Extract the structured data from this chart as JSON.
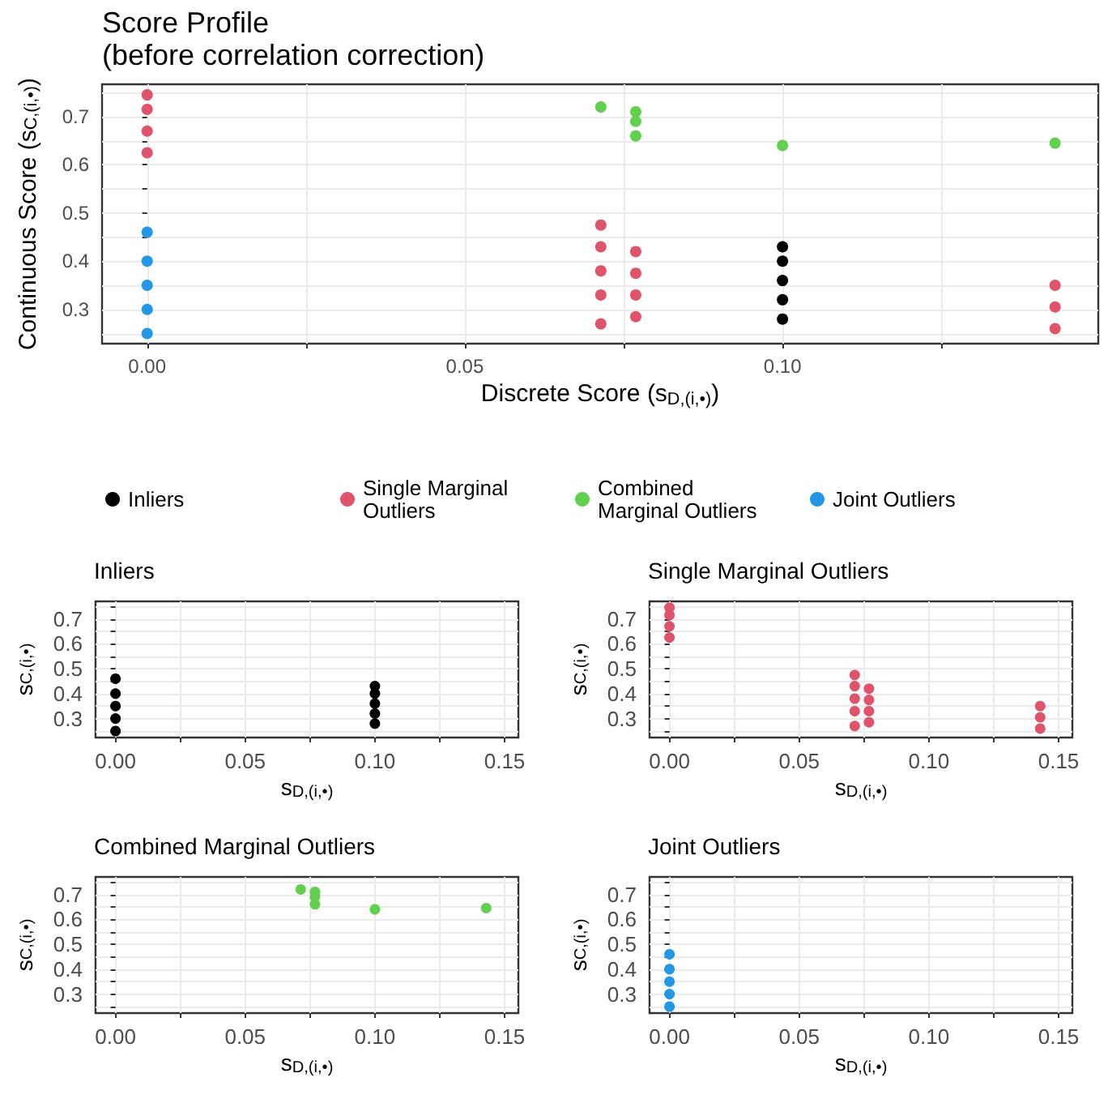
{
  "chart_data": [
    {
      "type": "scatter",
      "title": "Score Profile",
      "subtitle": "(before correlation correction)",
      "xlabel": "Discrete Score (s$_{D,(i,•)}$)",
      "ylabel": "Continuous Score (s$_{C,(i,•)}$)",
      "xlim": [
        -0.0071,
        0.1497
      ],
      "ylim": [
        0.229,
        0.767
      ],
      "xticks": [
        {
          "value": 0,
          "label": "0.00"
        },
        {
          "value": 0.025,
          "label": null
        },
        {
          "value": 0.05,
          "label": "0.05"
        },
        {
          "value": 0.075,
          "label": null
        },
        {
          "value": 0.1,
          "label": "0.10"
        },
        {
          "value": 0.125,
          "label": null
        }
      ],
      "yticks": [
        {
          "value": 0.25,
          "label": null
        },
        0.3,
        {
          "value": 0.35,
          "label": null
        },
        0.4,
        {
          "value": 0.45,
          "label": null
        },
        0.5,
        {
          "value": 0.55,
          "label": null
        },
        0.6,
        {
          "value": 0.65,
          "label": null
        },
        0.7,
        {
          "value": 0.75,
          "label": null
        }
      ],
      "grid": true,
      "legend": "bottom",
      "marker": "circle",
      "series": [
        {
          "name": "Inliers",
          "color": "#000000",
          "x": [
            0.1,
            0.1,
            0.1,
            0.1,
            0.1
          ],
          "values": [
            0.43,
            0.4,
            0.36,
            0.32,
            0.28
          ]
        },
        {
          "name": "Single Marginal Outliers",
          "color": "#df536b",
          "x": [
            0,
            0,
            0,
            0,
            0.0714,
            0.0714,
            0.0714,
            0.0714,
            0.0714,
            0.0769,
            0.0769,
            0.0769,
            0.0769,
            0.1429,
            0.1429,
            0.1429
          ],
          "values": [
            0.625,
            0.67,
            0.715,
            0.745,
            0.475,
            0.43,
            0.38,
            0.33,
            0.27,
            0.42,
            0.375,
            0.33,
            0.285,
            0.35,
            0.305,
            0.26
          ]
        },
        {
          "name": "Combined Marginal Outliers",
          "color": "#61d04f",
          "x": [
            0.0714,
            0.0769,
            0.0769,
            0.0769,
            0.1,
            0.1429
          ],
          "values": [
            0.72,
            0.71,
            0.69,
            0.66,
            0.64,
            0.645
          ]
        },
        {
          "name": "Joint Outliers",
          "color": "#2297e6",
          "x": [
            0,
            0,
            0,
            0,
            0
          ],
          "values": [
            0.25,
            0.3,
            0.35,
            0.4,
            0.46
          ]
        }
      ]
    },
    {
      "type": "scatter",
      "title": "Inliers",
      "xlabel": "s$_{D,(i,•)}$",
      "ylabel": "s$_{C,(i,•)}$",
      "xlim": [
        -0.0077,
        0.1553
      ],
      "ylim": [
        0.224,
        0.77
      ],
      "xticks": [
        {
          "value": 0,
          "label": "0.00"
        },
        {
          "value": 0.025,
          "label": null
        },
        {
          "value": 0.05,
          "label": "0.05"
        },
        {
          "value": 0.075,
          "label": null
        },
        {
          "value": 0.1,
          "label": "0.10"
        },
        {
          "value": 0.125,
          "label": null
        },
        {
          "value": 0.15,
          "label": "0.15"
        }
      ],
      "yticks": [
        {
          "value": 0.25,
          "label": null
        },
        0.3,
        {
          "value": 0.35,
          "label": null
        },
        0.4,
        {
          "value": 0.45,
          "label": null
        },
        0.5,
        {
          "value": 0.55,
          "label": null
        },
        0.6,
        {
          "value": 0.65,
          "label": null
        },
        0.7,
        {
          "value": 0.75,
          "label": null
        }
      ],
      "grid": true,
      "marker": "circle",
      "series": [
        {
          "color": "#000000",
          "x": [
            0,
            0,
            0,
            0,
            0,
            0.1,
            0.1,
            0.1,
            0.1,
            0.1
          ],
          "values": [
            0.25,
            0.3,
            0.35,
            0.4,
            0.46,
            0.43,
            0.4,
            0.36,
            0.32,
            0.28
          ]
        }
      ]
    },
    {
      "type": "scatter",
      "title": "Single Marginal Outliers",
      "xlabel": "s$_{D,(i,•)}$",
      "ylabel": "s$_{C,(i,•)}$",
      "xlim": [
        -0.0077,
        0.1553
      ],
      "ylim": [
        0.224,
        0.77
      ],
      "xticks": [
        {
          "value": 0,
          "label": "0.00"
        },
        {
          "value": 0.025,
          "label": null
        },
        {
          "value": 0.05,
          "label": "0.05"
        },
        {
          "value": 0.075,
          "label": null
        },
        {
          "value": 0.1,
          "label": "0.10"
        },
        {
          "value": 0.125,
          "label": null
        },
        {
          "value": 0.15,
          "label": "0.15"
        }
      ],
      "yticks": [
        {
          "value": 0.25,
          "label": null
        },
        0.3,
        {
          "value": 0.35,
          "label": null
        },
        0.4,
        {
          "value": 0.45,
          "label": null
        },
        0.5,
        {
          "value": 0.55,
          "label": null
        },
        0.6,
        {
          "value": 0.65,
          "label": null
        },
        0.7,
        {
          "value": 0.75,
          "label": null
        }
      ],
      "grid": true,
      "marker": "circle",
      "series": [
        {
          "color": "#df536b",
          "x": [
            0,
            0,
            0,
            0,
            0.0714,
            0.0714,
            0.0714,
            0.0714,
            0.0714,
            0.0769,
            0.0769,
            0.0769,
            0.0769,
            0.1429,
            0.1429,
            0.1429
          ],
          "values": [
            0.625,
            0.67,
            0.715,
            0.745,
            0.475,
            0.43,
            0.38,
            0.33,
            0.27,
            0.42,
            0.375,
            0.33,
            0.285,
            0.35,
            0.305,
            0.26
          ]
        }
      ]
    },
    {
      "type": "scatter",
      "title": "Combined Marginal Outliers",
      "xlabel": "s$_{D,(i,•)}$",
      "ylabel": "s$_{C,(i,•)}$",
      "xlim": [
        -0.0077,
        0.1553
      ],
      "ylim": [
        0.224,
        0.77
      ],
      "xticks": [
        {
          "value": 0,
          "label": "0.00"
        },
        {
          "value": 0.025,
          "label": null
        },
        {
          "value": 0.05,
          "label": "0.05"
        },
        {
          "value": 0.075,
          "label": null
        },
        {
          "value": 0.1,
          "label": "0.10"
        },
        {
          "value": 0.125,
          "label": null
        },
        {
          "value": 0.15,
          "label": "0.15"
        }
      ],
      "yticks": [
        {
          "value": 0.25,
          "label": null
        },
        0.3,
        {
          "value": 0.35,
          "label": null
        },
        0.4,
        {
          "value": 0.45,
          "label": null
        },
        0.5,
        {
          "value": 0.55,
          "label": null
        },
        0.6,
        {
          "value": 0.65,
          "label": null
        },
        0.7,
        {
          "value": 0.75,
          "label": null
        }
      ],
      "grid": true,
      "marker": "circle",
      "series": [
        {
          "color": "#61d04f",
          "x": [
            0.0714,
            0.0769,
            0.0769,
            0.0769,
            0.1,
            0.1429
          ],
          "values": [
            0.72,
            0.71,
            0.69,
            0.66,
            0.64,
            0.645
          ]
        }
      ]
    },
    {
      "type": "scatter",
      "title": "Joint Outliers",
      "xlabel": "s$_{D,(i,•)}$",
      "ylabel": "s$_{C,(i,•)}$",
      "xlim": [
        -0.0077,
        0.1553
      ],
      "ylim": [
        0.224,
        0.77
      ],
      "xticks": [
        {
          "value": 0,
          "label": "0.00"
        },
        {
          "value": 0.025,
          "label": null
        },
        {
          "value": 0.05,
          "label": "0.05"
        },
        {
          "value": 0.075,
          "label": null
        },
        {
          "value": 0.1,
          "label": "0.10"
        },
        {
          "value": 0.125,
          "label": null
        },
        {
          "value": 0.15,
          "label": "0.15"
        }
      ],
      "yticks": [
        {
          "value": 0.25,
          "label": null
        },
        0.3,
        {
          "value": 0.35,
          "label": null
        },
        0.4,
        {
          "value": 0.45,
          "label": null
        },
        0.5,
        {
          "value": 0.55,
          "label": null
        },
        0.6,
        {
          "value": 0.65,
          "label": null
        },
        0.7,
        {
          "value": 0.75,
          "label": null
        }
      ],
      "grid": true,
      "marker": "circle",
      "series": [
        {
          "color": "#2297e6",
          "x": [
            0,
            0,
            0,
            0,
            0
          ],
          "values": [
            0.25,
            0.3,
            0.35,
            0.4,
            0.46
          ]
        }
      ]
    }
  ]
}
